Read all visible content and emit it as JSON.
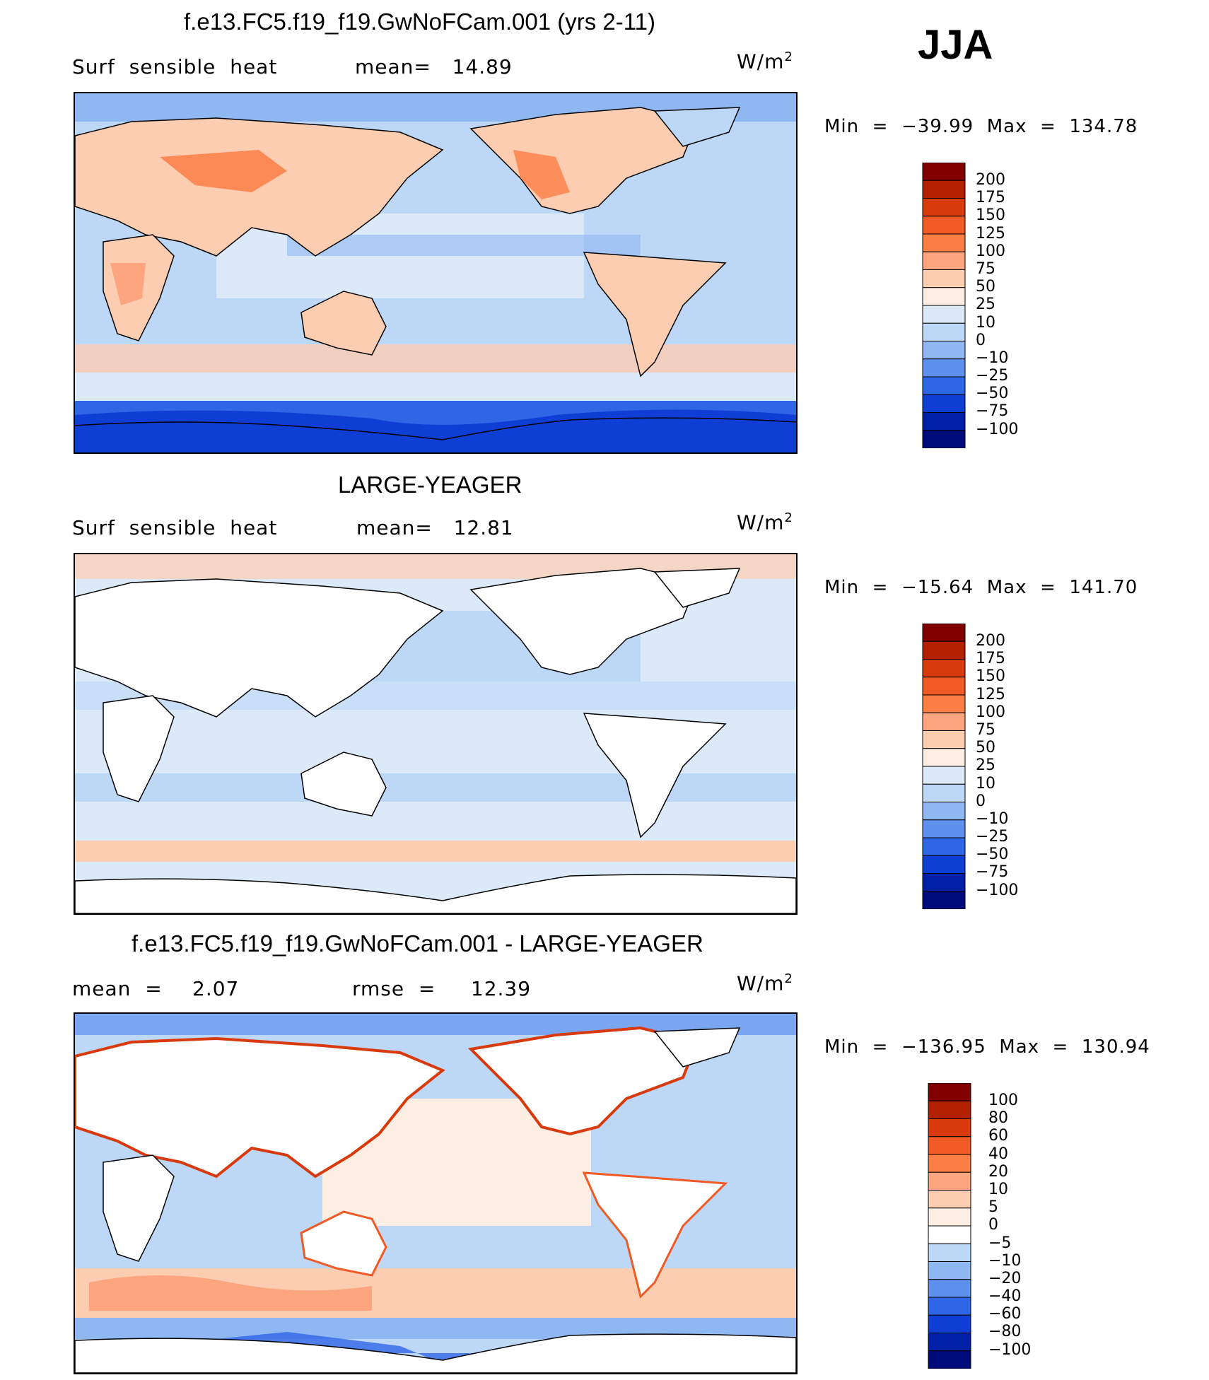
{
  "season": "JJA",
  "panels": [
    {
      "title": "f.e13.FC5.f19_f19.GwNoFCam.001 (yrs 2-11)",
      "variable": "Surf  sensible  heat",
      "stats": "mean=   14.89",
      "units": "W/m",
      "units_exp": "2",
      "minmax": "Min  =  −39.99  Max  =  134.78",
      "colorbar": {
        "ticks": [
          "200",
          "175",
          "150",
          "125",
          "100",
          "75",
          "50",
          "25",
          "10",
          "0",
          "−10",
          "−25",
          "−50",
          "−75",
          "−100"
        ],
        "colors": [
          "#800000",
          "#b32000",
          "#d83a0d",
          "#f05a25",
          "#fb7e45",
          "#fca57e",
          "#fdcdb2",
          "#fdeee3",
          "#dce9f8",
          "#bdd7f7",
          "#8fb8f3",
          "#5e91ee",
          "#2f66e6",
          "#0f3ed4",
          "#0020a8",
          "#000b7a"
        ]
      }
    },
    {
      "title": "LARGE-YEAGER",
      "variable": "Surf  sensible  heat",
      "stats": "mean=   12.81",
      "units": "W/m",
      "units_exp": "2",
      "minmax": "Min  =  −15.64  Max  =  141.70",
      "colorbar": {
        "ticks": [
          "200",
          "175",
          "150",
          "125",
          "100",
          "75",
          "50",
          "25",
          "10",
          "0",
          "−10",
          "−25",
          "−50",
          "−75",
          "−100"
        ],
        "colors": [
          "#800000",
          "#b32000",
          "#d83a0d",
          "#f05a25",
          "#fb7e45",
          "#fca57e",
          "#fdcdb2",
          "#fdeee3",
          "#dce9f8",
          "#bdd7f7",
          "#8fb8f3",
          "#5e91ee",
          "#2f66e6",
          "#0f3ed4",
          "#0020a8",
          "#000b7a"
        ]
      }
    },
    {
      "title": "f.e13.FC5.f19_f19.GwNoFCam.001 - LARGE-YEAGER",
      "variable": "mean  =",
      "stats": "2.07",
      "rmse": "rmse  =     12.39",
      "units": "W/m",
      "units_exp": "2",
      "minmax": "Min  =  −136.95  Max  =  130.94",
      "colorbar": {
        "ticks": [
          "100",
          "80",
          "60",
          "40",
          "20",
          "10",
          "5",
          "0",
          "−5",
          "−10",
          "−20",
          "−40",
          "−60",
          "−80",
          "−100"
        ],
        "colors": [
          "#800000",
          "#b32000",
          "#d83a0d",
          "#f05a25",
          "#fb7e45",
          "#fca57e",
          "#fdcdb2",
          "#fdeee3",
          "#ffffff",
          "#bdd7f7",
          "#8fb8f3",
          "#5e91ee",
          "#2f66e6",
          "#0f3ed4",
          "#0020a8",
          "#000b7a"
        ]
      }
    }
  ]
}
